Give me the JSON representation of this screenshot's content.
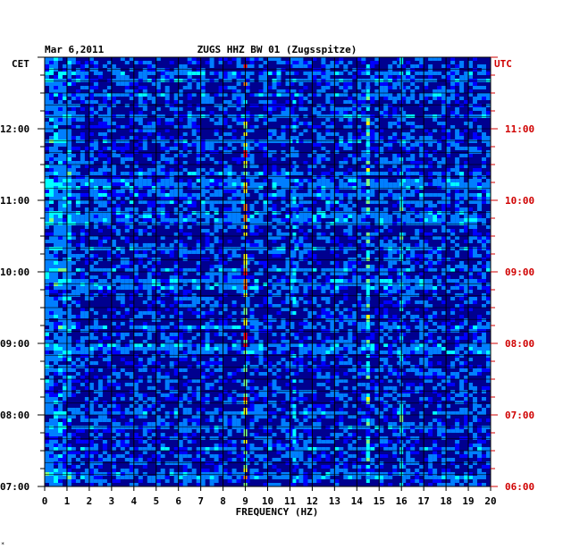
{
  "chart_data": {
    "type": "heatmap",
    "header_date": "Mar 6,2011",
    "title": "ZUGS HHZ BW 01 (Zugsspitze)",
    "xlabel": "FREQUENCY (HZ)",
    "xlim": [
      0,
      20
    ],
    "x_ticks": [
      "0",
      "1",
      "2",
      "3",
      "4",
      "5",
      "6",
      "7",
      "8",
      "9",
      "10",
      "11",
      "12",
      "13",
      "14",
      "15",
      "16",
      "17",
      "18",
      "19",
      "20"
    ],
    "left_axis": {
      "label": "CET",
      "ticks": [
        "07:00",
        "08:00",
        "09:00",
        "10:00",
        "11:00",
        "12:00"
      ],
      "range": [
        "07:00",
        "13:00"
      ]
    },
    "right_axis": {
      "label": "UTC",
      "ticks": [
        "06:00",
        "07:00",
        "08:00",
        "09:00",
        "10:00",
        "11:00"
      ],
      "range": [
        "06:00",
        "12:00"
      ]
    },
    "colormap": [
      "#00007f",
      "#0000ff",
      "#007fff",
      "#00ffff",
      "#7fff7f",
      "#ffff00",
      "#ff7f00",
      "#ff0000",
      "#7f0000"
    ],
    "background_color": "#00008f",
    "grid": true,
    "features": [
      {
        "label": "dominant line",
        "freq_hz": 9.0,
        "level": 0.75
      },
      {
        "label": "line",
        "freq_hz": 14.5,
        "level": 0.5
      },
      {
        "label": "line",
        "freq_hz": 16.0,
        "level": 0.4
      },
      {
        "label": "line",
        "freq_hz": 11.2,
        "level": 0.35
      }
    ]
  },
  "footer_mark": "*"
}
